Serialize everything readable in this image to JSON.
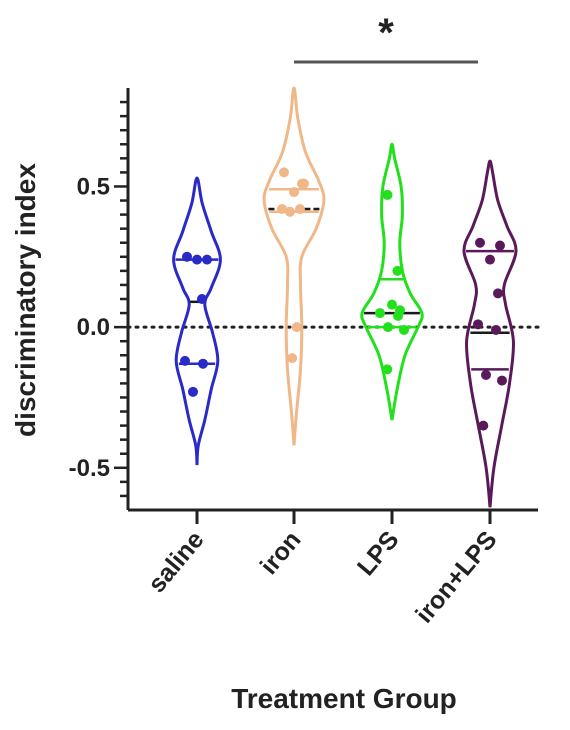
{
  "chart_data": {
    "type": "violin",
    "title": "",
    "xlabel": "Treatment Group",
    "ylabel": "discriminatory index",
    "ylim": [
      -0.65,
      0.85
    ],
    "yticks": [
      {
        "value": 0.5,
        "label": "0.5"
      },
      {
        "value": 0.0,
        "label": "0.0"
      },
      {
        "value": -0.5,
        "label": "-0.5"
      }
    ],
    "reference_line": {
      "value": 0.0,
      "style": "dotted"
    },
    "categories": [
      "saline",
      "iron",
      "LPS",
      "iron+LPS"
    ],
    "series": [
      {
        "category": "saline",
        "color": "#2a2ac8",
        "points": [
          0.25,
          0.24,
          0.24,
          0.1,
          -0.12,
          -0.13,
          -0.23
        ],
        "lines": [
          0.24,
          0.09,
          -0.13
        ],
        "violin": [
          [
            -0.49,
            0
          ],
          [
            -0.42,
            0.02
          ],
          [
            -0.33,
            0.12
          ],
          [
            -0.22,
            0.22
          ],
          [
            -0.12,
            0.32
          ],
          [
            -0.02,
            0.24
          ],
          [
            0.08,
            0.12
          ],
          [
            0.14,
            0.22
          ],
          [
            0.24,
            0.36
          ],
          [
            0.34,
            0.22
          ],
          [
            0.44,
            0.08
          ],
          [
            0.53,
            0
          ]
        ]
      },
      {
        "category": "iron",
        "color": "#f0b888",
        "points": [
          0.55,
          0.51,
          0.48,
          0.51,
          0.42,
          0.42,
          0.41,
          0.0,
          -0.11
        ],
        "lines": [
          0.49,
          0.42,
          0.41
        ],
        "violin": [
          [
            -0.42,
            0
          ],
          [
            -0.3,
            0.04
          ],
          [
            -0.15,
            0.1
          ],
          [
            0.0,
            0.12
          ],
          [
            0.15,
            0.1
          ],
          [
            0.25,
            0.12
          ],
          [
            0.35,
            0.34
          ],
          [
            0.45,
            0.46
          ],
          [
            0.52,
            0.38
          ],
          [
            0.62,
            0.18
          ],
          [
            0.74,
            0.06
          ],
          [
            0.85,
            0
          ]
        ]
      },
      {
        "category": "LPS",
        "color": "#22e01c",
        "points": [
          0.47,
          0.2,
          0.08,
          0.06,
          0.05,
          0.04,
          0.0,
          -0.01,
          -0.15
        ],
        "lines": [
          0.17,
          0.05,
          0.0
        ],
        "violin": [
          [
            -0.33,
            0
          ],
          [
            -0.22,
            0.08
          ],
          [
            -0.1,
            0.2
          ],
          [
            0.0,
            0.4
          ],
          [
            0.05,
            0.46
          ],
          [
            0.12,
            0.28
          ],
          [
            0.2,
            0.16
          ],
          [
            0.3,
            0.12
          ],
          [
            0.4,
            0.16
          ],
          [
            0.5,
            0.14
          ],
          [
            0.6,
            0.04
          ],
          [
            0.65,
            0
          ]
        ]
      },
      {
        "category": "iron+LPS",
        "color": "#5a1a5a",
        "points": [
          0.3,
          0.29,
          0.24,
          0.12,
          0.01,
          -0.01,
          -0.17,
          -0.19,
          -0.35
        ],
        "lines": [
          0.27,
          -0.02,
          -0.15
        ],
        "violin": [
          [
            -0.64,
            0
          ],
          [
            -0.5,
            0.06
          ],
          [
            -0.35,
            0.18
          ],
          [
            -0.2,
            0.3
          ],
          [
            -0.05,
            0.36
          ],
          [
            0.08,
            0.24
          ],
          [
            0.15,
            0.22
          ],
          [
            0.27,
            0.4
          ],
          [
            0.36,
            0.26
          ],
          [
            0.45,
            0.12
          ],
          [
            0.55,
            0.04
          ],
          [
            0.59,
            0
          ]
        ]
      }
    ],
    "significance": {
      "from": "iron",
      "to": "iron+LPS",
      "label": "*"
    }
  }
}
